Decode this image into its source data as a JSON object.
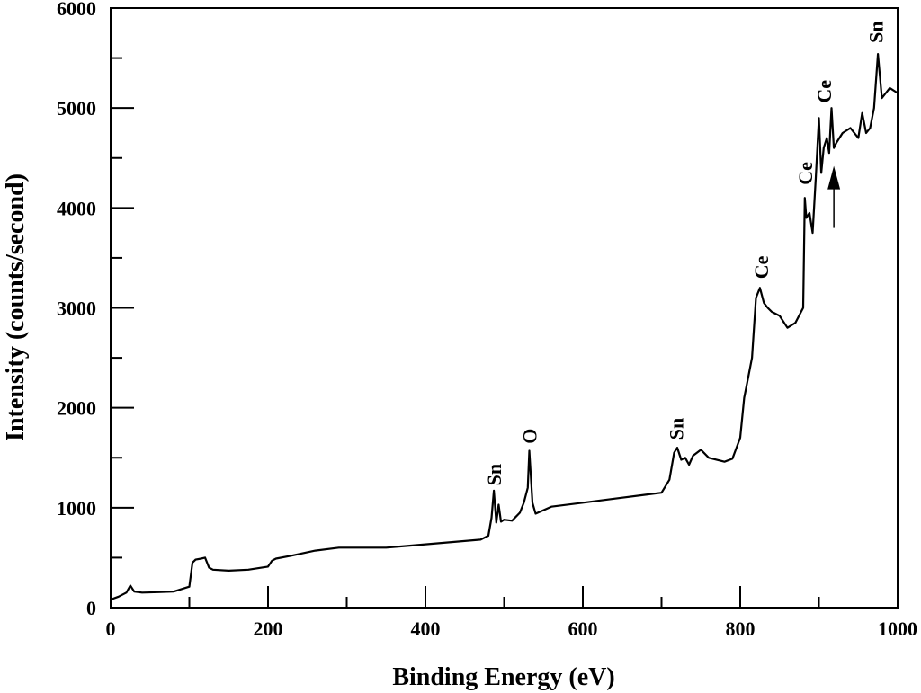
{
  "chart_data": {
    "type": "line",
    "title": "",
    "xlabel": "Binding Energy (eV)",
    "ylabel": "Intensity (counts/second)",
    "xlim": [
      0,
      1000
    ],
    "ylim": [
      0,
      6000
    ],
    "x_ticks": [
      0,
      200,
      400,
      600,
      800,
      1000
    ],
    "x_tick_labels": [
      "0",
      "200",
      "400",
      "600",
      "800",
      "1000"
    ],
    "y_ticks": [
      0,
      1000,
      2000,
      3000,
      4000,
      5000,
      6000
    ],
    "y_tick_labels": [
      "0",
      "1000",
      "2000",
      "3000",
      "4000",
      "5000",
      "6000"
    ],
    "grid": false,
    "line_color": "#000000",
    "series": [
      {
        "x": [
          0,
          10,
          20,
          25,
          30,
          40,
          60,
          80,
          100,
          104,
          108,
          115,
          120,
          125,
          130,
          150,
          175,
          200,
          205,
          210,
          230,
          260,
          290,
          320,
          350,
          380,
          410,
          440,
          470,
          480,
          484,
          487,
          490,
          493,
          496,
          500,
          510,
          520,
          525,
          530,
          532,
          536,
          540,
          560,
          600,
          640,
          680,
          700,
          710,
          716,
          720,
          725,
          730,
          735,
          740,
          750,
          760,
          780,
          790,
          800,
          805,
          810,
          815,
          820,
          825,
          830,
          835,
          840,
          850,
          860,
          870,
          880,
          882,
          884,
          888,
          892,
          896,
          900,
          903,
          906,
          910,
          913,
          916,
          919,
          922,
          926,
          930,
          940,
          950,
          955,
          960,
          965,
          970,
          975,
          980,
          985,
          990,
          1000
        ],
        "y": [
          80,
          110,
          150,
          220,
          160,
          150,
          155,
          160,
          210,
          450,
          480,
          490,
          500,
          400,
          380,
          370,
          380,
          410,
          470,
          490,
          520,
          570,
          600,
          600,
          600,
          620,
          640,
          660,
          680,
          720,
          900,
          1170,
          850,
          1030,
          860,
          880,
          870,
          950,
          1050,
          1200,
          1570,
          1050,
          940,
          1010,
          1050,
          1090,
          1130,
          1150,
          1280,
          1550,
          1600,
          1480,
          1500,
          1430,
          1520,
          1580,
          1500,
          1460,
          1490,
          1700,
          2100,
          2300,
          2500,
          3100,
          3200,
          3050,
          3000,
          2960,
          2920,
          2800,
          2850,
          3000,
          4100,
          3900,
          3950,
          3750,
          4300,
          4900,
          4350,
          4600,
          4700,
          4550,
          5000,
          4600,
          4650,
          4700,
          4750,
          4800,
          4700,
          4950,
          4750,
          4800,
          5000,
          5540,
          5100,
          5150,
          5200,
          5150
        ]
      }
    ],
    "annotations": [
      {
        "label": "Sn",
        "x": 487,
        "y": 1220
      },
      {
        "label": "O",
        "x": 532,
        "y": 1640
      },
      {
        "label": "Sn",
        "x": 718,
        "y": 1680
      },
      {
        "label": "Ce",
        "x": 826,
        "y": 3290
      },
      {
        "label": "Ce",
        "x": 882,
        "y": 4230
      },
      {
        "label": "Ce",
        "x": 906,
        "y": 5050
      },
      {
        "label": "Sn",
        "x": 972,
        "y": 5650
      }
    ],
    "arrow": {
      "x": 919,
      "y_from": 3800,
      "y_to": 4420
    }
  }
}
